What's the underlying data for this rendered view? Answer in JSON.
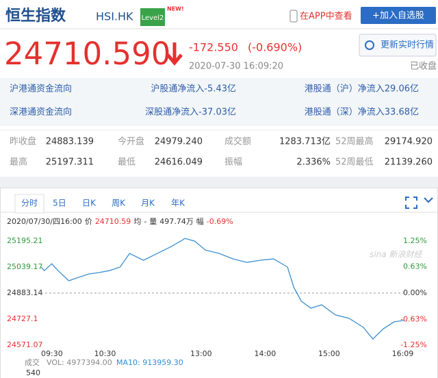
{
  "header": {
    "title": "恒生指数",
    "code": "HSI.HK",
    "badge": "Level2",
    "new": "NEW!",
    "app": "在APP中查看",
    "add": "+加入自选股"
  },
  "quote": {
    "price": "24710.590",
    "change": "-172.550",
    "change_pct": "(-0.690%)",
    "time": "2020-07-30 16:09:20",
    "refresh": "更新实时行情",
    "status": "已收盘"
  },
  "flows": [
    [
      "沪港通资金流向",
      "沪股通净流入-5.43亿",
      "港股通（沪）净流入29.06亿"
    ],
    [
      "深港通资金流向",
      "深股通净流入-37.03亿",
      "港股通（深）净流入33.68亿"
    ]
  ],
  "stats": [
    [
      "昨收盘",
      "24883.139",
      "今开盘",
      "24979.240",
      "成交额",
      "1283.713亿",
      "52周最高",
      "29174.920"
    ],
    [
      "最高",
      "25197.311",
      "最低",
      "24616.049",
      "振幅",
      "2.336%",
      "52周最低",
      "21139.260"
    ]
  ],
  "tabs": [
    "分时",
    "5日",
    "日K",
    "周K",
    "月K",
    "年K"
  ],
  "info": [
    "2020/07/30/四16:00",
    "价",
    "24710.59",
    "均",
    "-",
    "量",
    "497.74万",
    "幅",
    "-0.69%"
  ],
  "watermark": "sina 新浪财经",
  "volume": {
    "label": "成交",
    "vol": "VOL: 4977394.00",
    "ma10": "MA10: 913959.30",
    "max": "540"
  },
  "chart_data": {
    "type": "line",
    "color": "#3b8fd0",
    "x": [
      0,
      3,
      10,
      16,
      26,
      35,
      45,
      54,
      64,
      74,
      83,
      96,
      109,
      122,
      135,
      144,
      154,
      167,
      180,
      193,
      205,
      218,
      231,
      237,
      244,
      253,
      263,
      276,
      289,
      302,
      311,
      321,
      331,
      340
    ],
    "values": [
      25039,
      25018,
      25059,
      25018,
      24957,
      24977,
      24998,
      25006,
      25018,
      25039,
      25121,
      25080,
      25121,
      25162,
      25211,
      25195,
      25141,
      25121,
      25088,
      25067,
      25080,
      25088,
      25039,
      24916,
      24834,
      24793,
      24813,
      24752,
      24731,
      24678,
      24608,
      24670,
      24711,
      24719
    ],
    "xlim": [
      0,
      340
    ],
    "xticks": [
      {
        "value": 0,
        "label": "09:30"
      },
      {
        "value": 60,
        "label": "10:30"
      },
      {
        "value": 150,
        "label": "13:00"
      },
      {
        "value": 210,
        "label": "14:00"
      },
      {
        "value": 270,
        "label": "15:00"
      },
      {
        "value": 339,
        "label": "16:09"
      }
    ],
    "ylim": [
      24571.07,
      25195.21
    ],
    "yticks": [
      25195.21,
      25039.17,
      24883.14,
      24727.1,
      24571.07
    ],
    "y2lim": [
      -1.25,
      1.25
    ],
    "y2ticks": [
      {
        "value": 1.25,
        "label": "1.25%"
      },
      {
        "value": 0.63,
        "label": "0.63%"
      },
      {
        "value": 0,
        "label": "0.00%"
      },
      {
        "value": -0.63,
        "label": "-0.63%"
      },
      {
        "value": -1.25,
        "label": "-1.25%"
      }
    ]
  }
}
